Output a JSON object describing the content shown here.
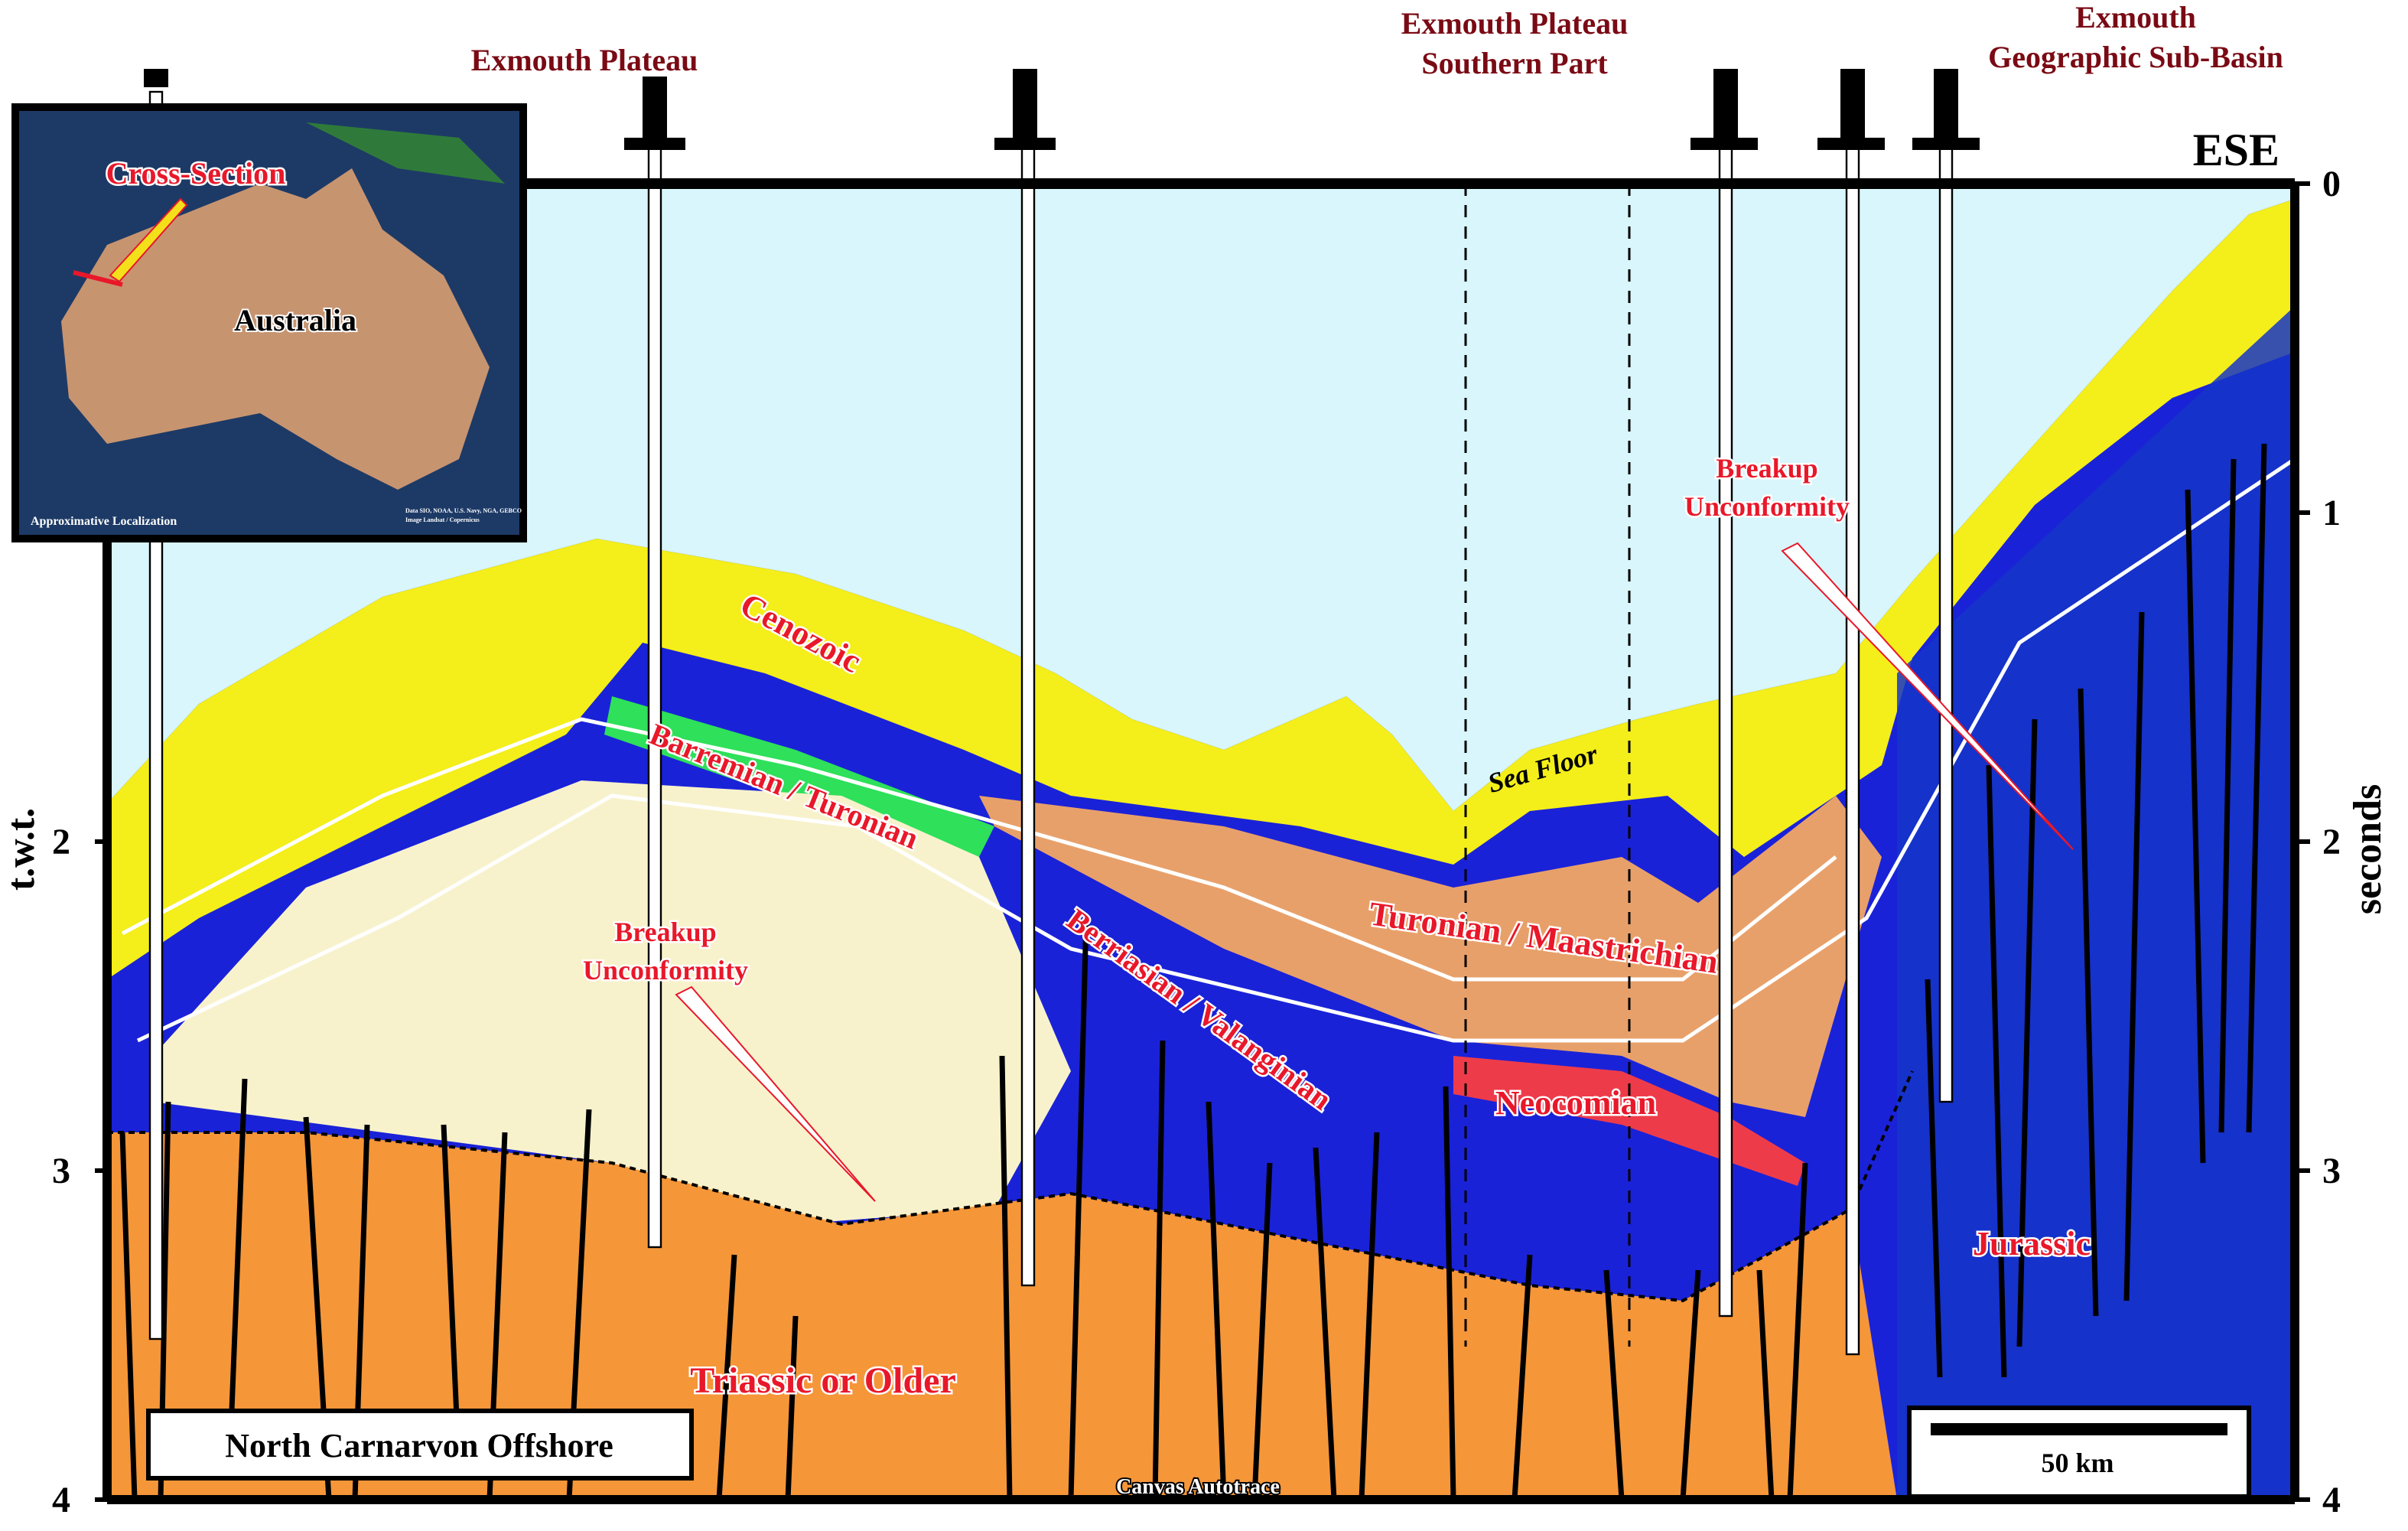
{
  "regions": [
    {
      "lines": [
        "Exmouth Plateau"
      ]
    },
    {
      "lines": [
        "Exmouth Plateau",
        "Southern Part"
      ]
    },
    {
      "lines": [
        "Exmouth",
        "Geographic Sub-Basin"
      ]
    }
  ],
  "direction": "ESE",
  "axis": {
    "left_label": "t.w.t.",
    "right_label": "seconds",
    "lim": [
      0,
      4
    ],
    "ticks": [
      0,
      1,
      2,
      3,
      4
    ]
  },
  "inset": {
    "callout": "Cross-Section",
    "country": "Australia",
    "caption": "Approximative Localization",
    "credit": [
      "Data SIO, NOAA, U.S. Navy, NGA, GEBCO",
      "Image Landsat / Copernicus"
    ]
  },
  "units": [
    "Cenozoic",
    "Barremian / Turonian",
    "Berriasian / Valanginian",
    "Turonian / Maastrichian",
    "Neocomian",
    "Jurassic",
    "Triassic or Older"
  ],
  "unconformities": [
    [
      "Breakup",
      "Unconformity"
    ],
    [
      "Breakup",
      "Unconformity"
    ]
  ],
  "sea_floor": "Sea Floor",
  "location": "North Carnarvon Offshore",
  "scale_bar": "50 km",
  "watermark": "Canvas Autotrace"
}
